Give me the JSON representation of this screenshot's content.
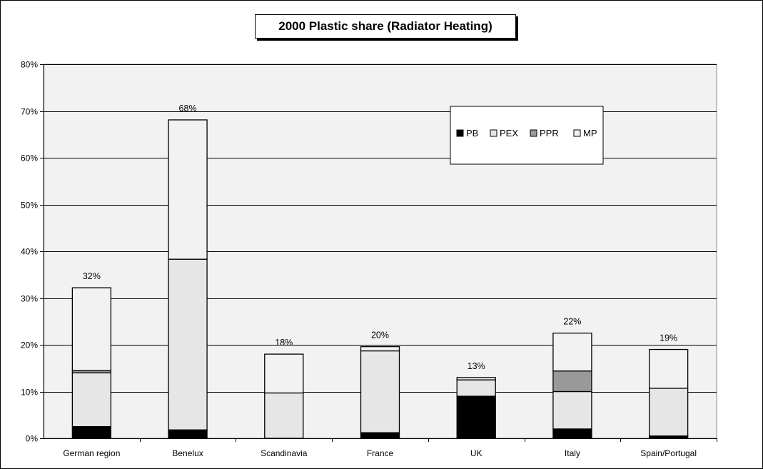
{
  "chart_data": {
    "type": "bar",
    "stacked": true,
    "title": "2000 Plastic share (Radiator Heating)",
    "xlabel": "",
    "ylabel": "",
    "ylim": [
      0,
      80
    ],
    "yticks": [
      "0%",
      "10%",
      "20%",
      "30%",
      "40%",
      "50%",
      "60%",
      "70%",
      "80%"
    ],
    "grid": true,
    "legend_position": "upper-right",
    "categories": [
      "German region",
      "Benelux",
      "Scandinavia",
      "France",
      "UK",
      "Italy",
      "Spain/Portugal"
    ],
    "series": [
      {
        "name": "PB",
        "color": "#000000",
        "values": [
          2.5,
          1.8,
          0,
          1.2,
          9.0,
          2.0,
          0.5
        ]
      },
      {
        "name": "PEX",
        "color": "#e6e6e6",
        "values": [
          11.5,
          36.5,
          9.7,
          17.5,
          3.5,
          8.0,
          10.2
        ]
      },
      {
        "name": "PPR",
        "color": "#999999",
        "values": [
          0.5,
          0,
          0,
          0,
          0,
          4.4,
          0
        ]
      },
      {
        "name": "MP",
        "color": "#f2f2f2",
        "values": [
          17.7,
          29.8,
          8.3,
          0.9,
          0.5,
          8.1,
          8.3
        ]
      }
    ],
    "totals": [
      "32%",
      "68%",
      "18%",
      "20%",
      "13%",
      "22%",
      "19%"
    ],
    "plot_background": "#f2f2f2"
  }
}
